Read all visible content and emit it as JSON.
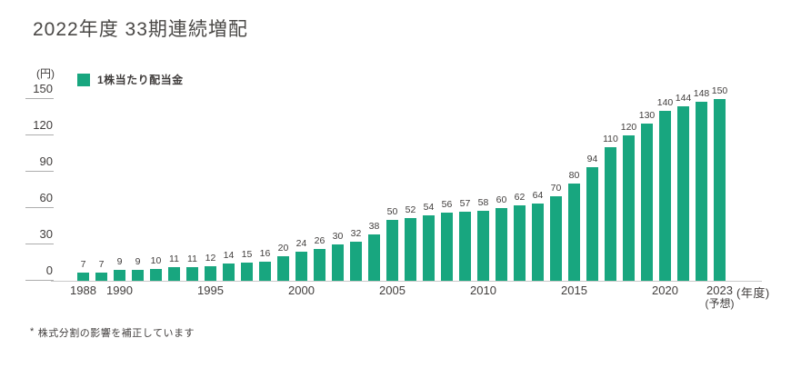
{
  "page": {
    "title": "2022年度 33期連続増配",
    "footnote_marker": "*",
    "footnote_text": "株式分割の影響を補正しています"
  },
  "legend": {
    "label": "1株当たり配当金"
  },
  "y_axis": {
    "unit": "(円)"
  },
  "x_axis": {
    "unit": "(年度)"
  },
  "colors": {
    "bar": "#18a67f",
    "axis_line": "#c9c9c9",
    "tick_line": "#adadad",
    "text": "#403d3c"
  },
  "chart_data": {
    "type": "bar",
    "title": "2022年度 33期連続増配",
    "series_name": "1株当たり配当金",
    "ylabel": "(円)",
    "xlabel": "(年度)",
    "ylim": [
      0,
      150
    ],
    "yticks": [
      0,
      30,
      60,
      90,
      120,
      150
    ],
    "grid": false,
    "legend_position": "top-left",
    "data_labels": true,
    "x": [
      1988,
      1989,
      1990,
      1991,
      1992,
      1993,
      1994,
      1995,
      1996,
      1997,
      1998,
      1999,
      2000,
      2001,
      2002,
      2003,
      2004,
      2005,
      2006,
      2007,
      2008,
      2009,
      2010,
      2011,
      2012,
      2013,
      2014,
      2015,
      2016,
      2017,
      2018,
      2019,
      2020,
      2021,
      2022,
      2023
    ],
    "values": [
      7,
      7,
      9,
      9,
      10,
      11,
      11,
      12,
      14,
      15,
      16,
      20,
      24,
      26,
      30,
      32,
      38,
      50,
      52,
      54,
      56,
      57,
      58,
      60,
      62,
      64,
      70,
      80,
      94,
      110,
      120,
      130,
      140,
      144,
      148,
      150
    ],
    "xticks": [
      {
        "index": 0,
        "label": "1988"
      },
      {
        "index": 2,
        "label": "1990"
      },
      {
        "index": 7,
        "label": "1995"
      },
      {
        "index": 12,
        "label": "2000"
      },
      {
        "index": 17,
        "label": "2005"
      },
      {
        "index": 22,
        "label": "2010"
      },
      {
        "index": 27,
        "label": "2015"
      },
      {
        "index": 32,
        "label": "2020"
      },
      {
        "index": 35,
        "label": "2023",
        "sublabel": "(予想)"
      }
    ]
  }
}
